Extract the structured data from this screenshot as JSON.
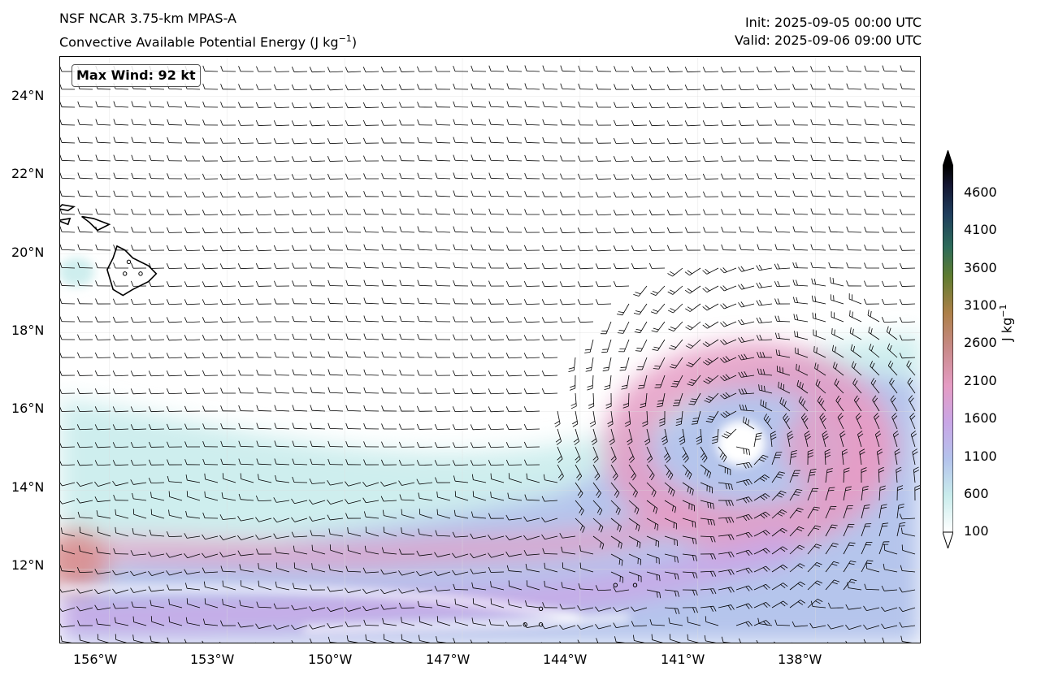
{
  "header": {
    "title_line1": "NSF NCAR 3.75-km MPAS-A",
    "title_line2_prefix": "Convective Available Potential Energy (J kg",
    "title_line2_exp": "−1",
    "title_line2_suffix": ")",
    "init": "Init: 2025-09-05 00:00 UTC",
    "valid": "Valid: 2025-09-06 09:00 UTC"
  },
  "annotation": {
    "max_wind": "Max Wind: 92 kt"
  },
  "axes": {
    "lat_labels": [
      "24°N",
      "22°N",
      "20°N",
      "18°N",
      "16°N",
      "14°N",
      "12°N"
    ],
    "lon_labels": [
      "156°W",
      "153°W",
      "150°W",
      "147°W",
      "144°W",
      "141°W",
      "138°W"
    ]
  },
  "map_data": {
    "variable": "CAPE",
    "extent": {
      "lon_min": -157.25,
      "lon_max": -135.3,
      "lat_min": 10.1,
      "lat_max": 25.0
    },
    "storm_center": {
      "lon": -139.9,
      "lat": 15.3
    },
    "islands": "Hawaiian Islands (Big Island, Maui)",
    "wind_barbs": true,
    "colormap": [
      "#ffffff",
      "#c9ecec",
      "#b4c3ec",
      "#c9a6e6",
      "#e59cc4",
      "#d98f8f",
      "#b38246",
      "#6c7e32",
      "#2f6b5a",
      "#1f3d5c",
      "#131530",
      "#000000"
    ]
  },
  "colorbar": {
    "ticks": [
      "4600",
      "4100",
      "3600",
      "3100",
      "2600",
      "2100",
      "1600",
      "1100",
      "600",
      "100"
    ],
    "label_base": "J kg",
    "label_exp": "−1"
  }
}
